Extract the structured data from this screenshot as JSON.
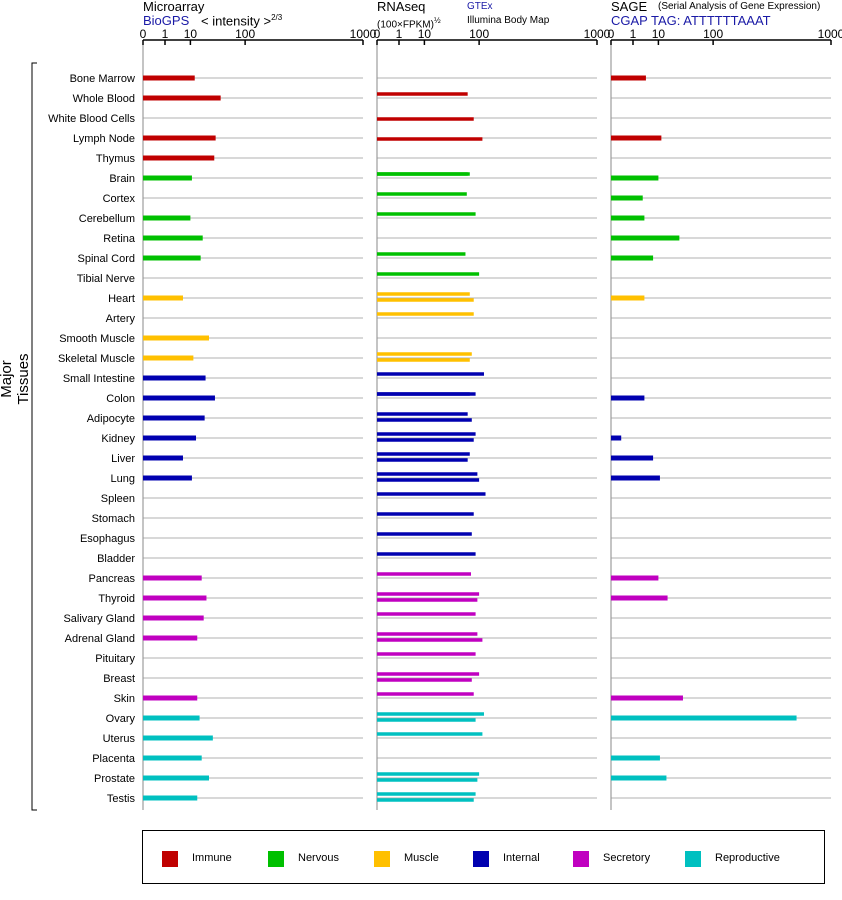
{
  "headers": {
    "microarray": {
      "title": "Microarray",
      "source": "BioGPS",
      "unit": "< intensity >",
      "exponent": "2/3"
    },
    "rnaseq": {
      "title": "RNAseq",
      "unit": "(100×FPKM)",
      "exponent": "½",
      "source1": "GTEx",
      "source2": "Illumina Body Map"
    },
    "sage": {
      "title": "SAGE",
      "subtitle": "(Serial Analysis of Gene Expression)",
      "tag": "CGAP TAG: ATTTTTTAAAT"
    }
  },
  "y_axis_label": "Major Tissues",
  "legend": [
    {
      "label": "Immune",
      "color": "#c00000"
    },
    {
      "label": "Nervous",
      "color": "#00c000"
    },
    {
      "label": "Muscle",
      "color": "#ffc000"
    },
    {
      "label": "Internal",
      "color": "#0000b0"
    },
    {
      "label": "Secretory",
      "color": "#c000c0"
    },
    {
      "label": "Reproductive",
      "color": "#00c0c0"
    }
  ],
  "chart_data": {
    "type": "bar",
    "orientation": "horizontal",
    "categories": [
      "Bone Marrow",
      "Whole Blood",
      "White Blood Cells",
      "Lymph Node",
      "Thymus",
      "Brain",
      "Cortex",
      "Cerebellum",
      "Retina",
      "Spinal Cord",
      "Tibial Nerve",
      "Heart",
      "Artery",
      "Smooth Muscle",
      "Skeletal Muscle",
      "Small Intestine",
      "Colon",
      "Adipocyte",
      "Kidney",
      "Liver",
      "Lung",
      "Spleen",
      "Stomach",
      "Esophagus",
      "Bladder",
      "Pancreas",
      "Thyroid",
      "Salivary Gland",
      "Adrenal Gland",
      "Pituitary",
      "Breast",
      "Skin",
      "Ovary",
      "Uterus",
      "Placenta",
      "Prostate",
      "Testis"
    ],
    "groups": [
      "Immune",
      "Immune",
      "Immune",
      "Immune",
      "Immune",
      "Nervous",
      "Nervous",
      "Nervous",
      "Nervous",
      "Nervous",
      "Nervous",
      "Muscle",
      "Muscle",
      "Muscle",
      "Muscle",
      "Internal",
      "Internal",
      "Internal",
      "Internal",
      "Internal",
      "Internal",
      "Internal",
      "Internal",
      "Internal",
      "Internal",
      "Secretory",
      "Secretory",
      "Secretory",
      "Secretory",
      "Secretory",
      "Secretory",
      "Secretory",
      "Reproductive",
      "Reproductive",
      "Reproductive",
      "Reproductive",
      "Reproductive"
    ],
    "xticks": [
      "0",
      "1",
      "10",
      "100",
      "1000"
    ],
    "xlim": [
      0,
      1000
    ],
    "panels": [
      {
        "name": "Microarray",
        "values": [
          13,
          44,
          null,
          36,
          34,
          11,
          null,
          10,
          20,
          18,
          null,
          6,
          null,
          27,
          12,
          23,
          35,
          22,
          14,
          6,
          11,
          null,
          null,
          null,
          null,
          19,
          24,
          21,
          15,
          null,
          null,
          15,
          17,
          32,
          19,
          27,
          15
        ]
      },
      {
        "name": "RNAseq GTEx",
        "values": [
          null,
          70,
          null,
          null,
          null,
          70,
          null,
          null,
          null,
          null,
          null,
          null,
          null,
          null,
          null,
          null,
          90,
          null,
          null,
          null,
          null,
          null,
          null,
          null,
          null,
          null,
          null,
          null,
          null,
          null,
          null,
          null,
          null,
          null,
          null,
          null,
          null
        ]
      },
      {
        "name": "RNAseq",
        "values": [
          null,
          null,
          85,
          110,
          null,
          null,
          null,
          null,
          null,
          null,
          null,
          null,
          null,
          null,
          null,
          null,
          null,
          null,
          null,
          null,
          null,
          null,
          null,
          null,
          null,
          null,
          null,
          null,
          null,
          null,
          null,
          null,
          null,
          null,
          null,
          null,
          null
        ]
      },
      {
        "name": "RNAseq Illumina Body Map",
        "values": [
          null,
          null,
          null,
          null,
          null,
          75,
          68,
          90,
          null,
          65,
          100,
          75,
          85,
          null,
          80,
          115,
          75,
          70,
          90,
          75,
          95,
          120,
          85,
          80,
          90,
          78,
          100,
          90,
          95,
          90,
          100,
          85,
          115,
          110,
          null,
          100,
          90
        ]
      },
      {
        "name": "RNAseq Illumina Body Map 2",
        "values": [
          null,
          null,
          null,
          null,
          null,
          null,
          null,
          null,
          null,
          null,
          null,
          85,
          null,
          null,
          75,
          null,
          null,
          80,
          85,
          70,
          100,
          null,
          null,
          null,
          null,
          null,
          95,
          null,
          110,
          null,
          80,
          null,
          90,
          null,
          null,
          95,
          85
        ]
      },
      {
        "name": "SAGE",
        "values": [
          4,
          null,
          null,
          12,
          null,
          10,
          3,
          3.5,
          30,
          7,
          null,
          3.5,
          null,
          null,
          null,
          null,
          3.5,
          null,
          0.1,
          7,
          11,
          null,
          null,
          null,
          null,
          10,
          17,
          null,
          null,
          null,
          null,
          35,
          600,
          null,
          11,
          16,
          null
        ]
      }
    ]
  }
}
